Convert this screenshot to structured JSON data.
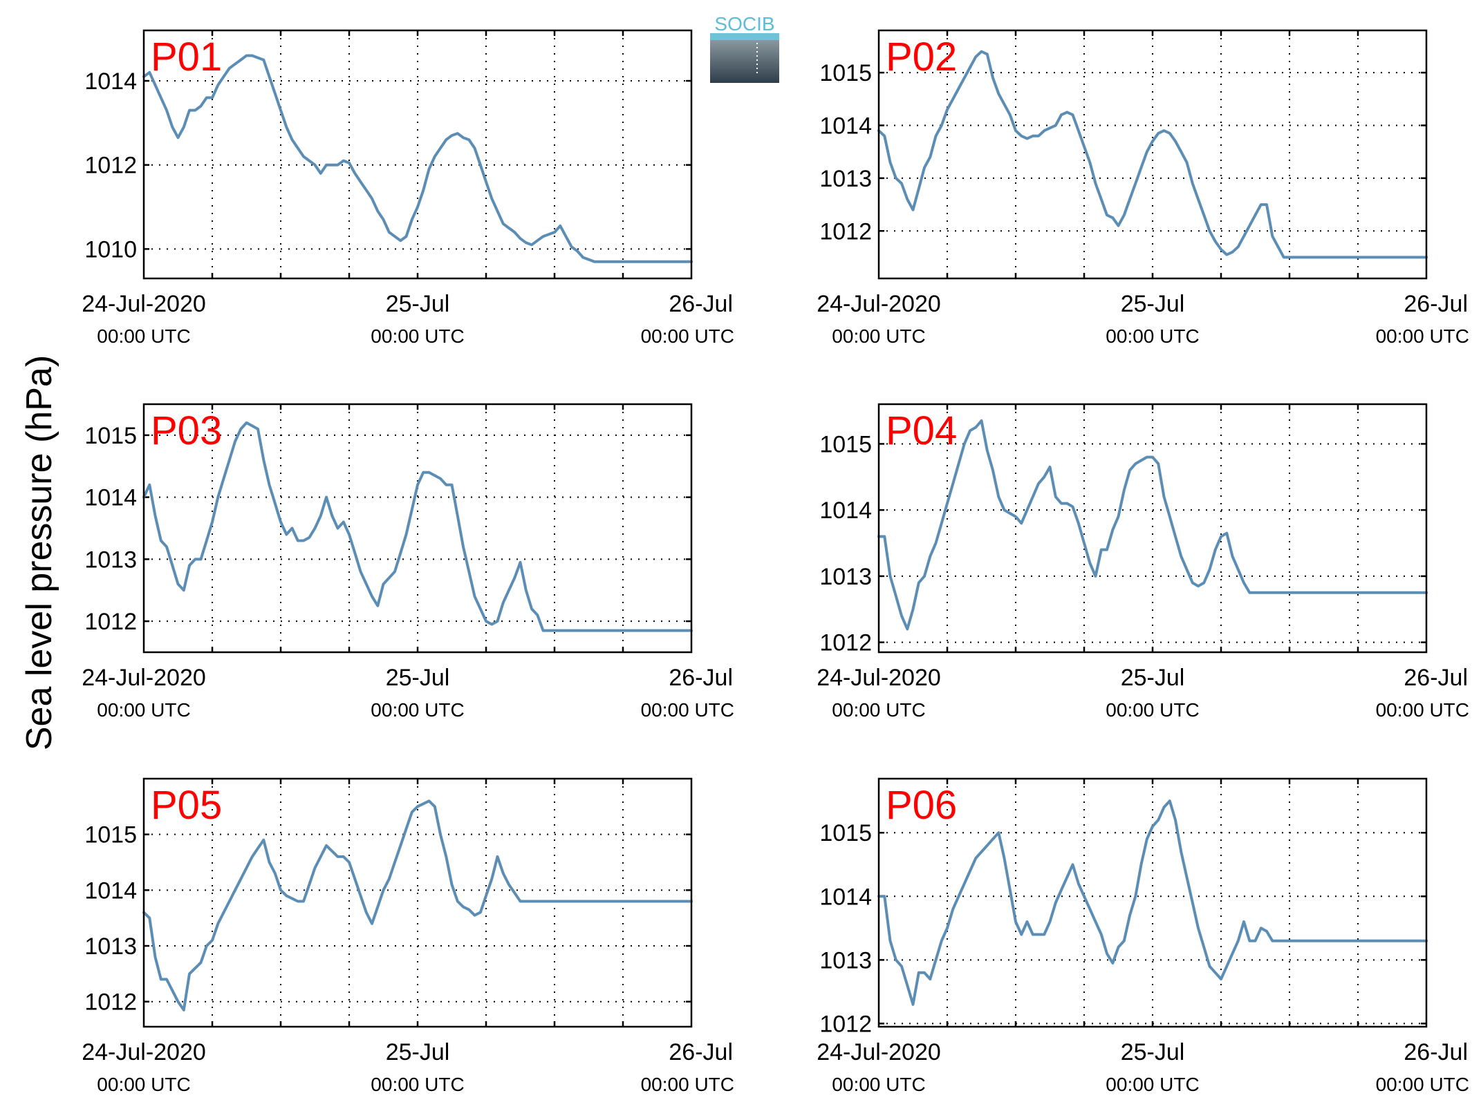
{
  "logo": {
    "text": "SOCIB"
  },
  "colors": {
    "series": "#5b8db5",
    "panel_label": "#ff0000",
    "axes": "#000000",
    "logo_text": "#5bbdd6"
  },
  "y_axis_label": "Sea level pressure (hPa)",
  "x_axis": {
    "ticks": [
      {
        "line1": "24-Jul-2020",
        "line2": "00:00 UTC"
      },
      {
        "line1": "25-Jul",
        "line2": "00:00 UTC"
      },
      {
        "line1": "26-Jul",
        "line2": "00:00 UTC"
      }
    ],
    "unit": "hours since 24-Jul-2020 00:00 UTC"
  },
  "chart_data": [
    {
      "type": "line",
      "label": "P01",
      "xlim": [
        0,
        48
      ],
      "ylim": [
        1009.3,
        1015.2
      ],
      "yticks": [
        1010,
        1012,
        1014
      ],
      "grid": true,
      "x": [
        0,
        0.5,
        1,
        1.5,
        2,
        2.5,
        3,
        3.5,
        4,
        4.5,
        5,
        5.5,
        6,
        6.5,
        7,
        7.5,
        8,
        8.5,
        9,
        9.5,
        10,
        10.5,
        11,
        11.5,
        12,
        12.5,
        13,
        13.5,
        14,
        14.5,
        15,
        15.5,
        16,
        16.5,
        17,
        17.5,
        18,
        18.5,
        19,
        19.5,
        20,
        20.5,
        21,
        21.5,
        22,
        22.5,
        23,
        23.5,
        24,
        24.5,
        25,
        25.5,
        26,
        26.5,
        27,
        27.5,
        28,
        28.5,
        29,
        29.5,
        30,
        30.5,
        31,
        31.5,
        32,
        32.5,
        33,
        33.5,
        34,
        34.5,
        35,
        35.5,
        36,
        36.5,
        37,
        37.5,
        38,
        38.5,
        39,
        39.5,
        40,
        40.5,
        41,
        41.5,
        42,
        42.5,
        43,
        43.5,
        44,
        44.5,
        45,
        45.5,
        46,
        46.5,
        47,
        47.5,
        48
      ],
      "values": [
        1014.1,
        1014.2,
        1013.9,
        1013.6,
        1013.3,
        1012.9,
        1012.65,
        1012.9,
        1013.3,
        1013.3,
        1013.4,
        1013.6,
        1013.6,
        1013.9,
        1014.1,
        1014.3,
        1014.4,
        1014.5,
        1014.6,
        1014.6,
        1014.55,
        1014.5,
        1014.1,
        1013.7,
        1013.3,
        1012.9,
        1012.6,
        1012.4,
        1012.2,
        1012.1,
        1012.0,
        1011.8,
        1012.0,
        1012.0,
        1012.0,
        1012.1,
        1012.05,
        1011.8,
        1011.6,
        1011.4,
        1011.2,
        1010.9,
        1010.7,
        1010.4,
        1010.3,
        1010.2,
        1010.3,
        1010.7,
        1011.0,
        1011.4,
        1011.9,
        1012.2,
        1012.4,
        1012.6,
        1012.7,
        1012.75,
        1012.65,
        1012.6,
        1012.4,
        1012.0,
        1011.6,
        1011.2,
        1010.9,
        1010.6,
        1010.5,
        1010.4,
        1010.25,
        1010.15,
        1010.1,
        1010.2,
        1010.3,
        1010.35,
        1010.4,
        1010.55,
        1010.3,
        1010.05,
        1009.95,
        1009.8,
        1009.75,
        1009.7,
        1009.7,
        1009.7,
        1009.7,
        1009.7,
        1009.7,
        1009.7,
        1009.7,
        1009.7,
        1009.7,
        1009.7,
        1009.7,
        1009.7,
        1009.7,
        1009.7,
        1009.7,
        1009.7,
        1009.7
      ]
    },
    {
      "type": "line",
      "label": "P02",
      "xlim": [
        0,
        48
      ],
      "ylim": [
        1011.1,
        1015.8
      ],
      "yticks": [
        1012,
        1013,
        1014,
        1015
      ],
      "grid": true,
      "x": [
        0,
        0.5,
        1,
        1.5,
        2,
        2.5,
        3,
        3.5,
        4,
        4.5,
        5,
        5.5,
        6,
        6.5,
        7,
        7.5,
        8,
        8.5,
        9,
        9.5,
        10,
        10.5,
        11,
        11.5,
        12,
        12.5,
        13,
        13.5,
        14,
        14.5,
        15,
        15.5,
        16,
        16.5,
        17,
        17.5,
        18,
        18.5,
        19,
        19.5,
        20,
        20.5,
        21,
        21.5,
        22,
        22.5,
        23,
        23.5,
        24,
        24.5,
        25,
        25.5,
        26,
        26.5,
        27,
        27.5,
        28,
        28.5,
        29,
        29.5,
        30,
        30.5,
        31,
        31.5,
        32,
        32.5,
        33,
        33.5,
        34,
        34.5,
        35,
        35.5,
        36,
        36.5,
        37,
        37.5,
        38,
        38.5,
        39,
        39.5,
        40,
        40.5,
        41,
        41.5,
        42,
        42.5,
        43,
        43.5,
        44,
        44.5,
        45,
        45.5,
        46,
        46.5,
        47,
        47.5,
        48
      ],
      "values": [
        1013.9,
        1013.8,
        1013.3,
        1013.0,
        1012.9,
        1012.6,
        1012.4,
        1012.8,
        1013.2,
        1013.4,
        1013.8,
        1014.0,
        1014.3,
        1014.5,
        1014.7,
        1014.9,
        1015.1,
        1015.3,
        1015.4,
        1015.35,
        1014.9,
        1014.6,
        1014.4,
        1014.2,
        1013.9,
        1013.8,
        1013.75,
        1013.8,
        1013.8,
        1013.9,
        1013.95,
        1014.0,
        1014.2,
        1014.25,
        1014.2,
        1013.9,
        1013.6,
        1013.3,
        1012.9,
        1012.6,
        1012.3,
        1012.25,
        1012.1,
        1012.3,
        1012.6,
        1012.9,
        1013.2,
        1013.5,
        1013.7,
        1013.85,
        1013.9,
        1013.85,
        1013.7,
        1013.5,
        1013.3,
        1012.9,
        1012.6,
        1012.3,
        1012.0,
        1011.8,
        1011.65,
        1011.55,
        1011.6,
        1011.7,
        1011.9,
        1012.1,
        1012.3,
        1012.5,
        1012.5,
        1011.9,
        1011.7,
        1011.5,
        1011.5,
        1011.5,
        1011.5,
        1011.5,
        1011.5,
        1011.5,
        1011.5,
        1011.5,
        1011.5,
        1011.5,
        1011.5,
        1011.5,
        1011.5,
        1011.5,
        1011.5,
        1011.5,
        1011.5,
        1011.5,
        1011.5,
        1011.5,
        1011.5,
        1011.5,
        1011.5,
        1011.5,
        1011.5
      ]
    },
    {
      "type": "line",
      "label": "P03",
      "xlim": [
        0,
        48
      ],
      "ylim": [
        1011.5,
        1015.5
      ],
      "yticks": [
        1012,
        1013,
        1014,
        1015
      ],
      "grid": true,
      "x": [
        0,
        0.5,
        1,
        1.5,
        2,
        2.5,
        3,
        3.5,
        4,
        4.5,
        5,
        5.5,
        6,
        6.5,
        7,
        7.5,
        8,
        8.5,
        9,
        9.5,
        10,
        10.5,
        11,
        11.5,
        12,
        12.5,
        13,
        13.5,
        14,
        14.5,
        15,
        15.5,
        16,
        16.5,
        17,
        17.5,
        18,
        18.5,
        19,
        19.5,
        20,
        20.5,
        21,
        21.5,
        22,
        22.5,
        23,
        23.5,
        24,
        24.5,
        25,
        25.5,
        26,
        26.5,
        27,
        27.5,
        28,
        28.5,
        29,
        29.5,
        30,
        30.5,
        31,
        31.5,
        32,
        32.5,
        33,
        33.5,
        34,
        34.5,
        35,
        35.5,
        36,
        36.5,
        37,
        37.5,
        38,
        38.5,
        39,
        39.5,
        40,
        40.5,
        41,
        41.5,
        42,
        42.5,
        43,
        43.5,
        44,
        44.5,
        45,
        45.5,
        46,
        46.5,
        47,
        47.5,
        48
      ],
      "values": [
        1014.0,
        1014.2,
        1013.7,
        1013.3,
        1013.2,
        1012.9,
        1012.6,
        1012.5,
        1012.9,
        1013.0,
        1013.0,
        1013.3,
        1013.6,
        1014.0,
        1014.3,
        1014.6,
        1014.9,
        1015.1,
        1015.2,
        1015.15,
        1015.1,
        1014.6,
        1014.2,
        1013.9,
        1013.6,
        1013.4,
        1013.5,
        1013.3,
        1013.3,
        1013.35,
        1013.5,
        1013.7,
        1014.0,
        1013.7,
        1013.5,
        1013.6,
        1013.4,
        1013.1,
        1012.8,
        1012.6,
        1012.4,
        1012.25,
        1012.6,
        1012.7,
        1012.8,
        1013.1,
        1013.4,
        1013.8,
        1014.2,
        1014.4,
        1014.4,
        1014.35,
        1014.3,
        1014.2,
        1014.2,
        1013.7,
        1013.2,
        1012.8,
        1012.4,
        1012.2,
        1012.0,
        1011.95,
        1012.0,
        1012.3,
        1012.5,
        1012.7,
        1012.95,
        1012.5,
        1012.2,
        1012.1,
        1011.85,
        1011.85,
        1011.85,
        1011.85,
        1011.85,
        1011.85,
        1011.85,
        1011.85,
        1011.85,
        1011.85,
        1011.85,
        1011.85,
        1011.85,
        1011.85,
        1011.85,
        1011.85,
        1011.85,
        1011.85,
        1011.85,
        1011.85,
        1011.85,
        1011.85,
        1011.85,
        1011.85,
        1011.85,
        1011.85,
        1011.85
      ]
    },
    {
      "type": "line",
      "label": "P04",
      "xlim": [
        0,
        48
      ],
      "ylim": [
        1011.85,
        1015.6
      ],
      "yticks": [
        1012,
        1013,
        1014,
        1015
      ],
      "grid": true,
      "x": [
        0,
        0.5,
        1,
        1.5,
        2,
        2.5,
        3,
        3.5,
        4,
        4.5,
        5,
        5.5,
        6,
        6.5,
        7,
        7.5,
        8,
        8.5,
        9,
        9.5,
        10,
        10.5,
        11,
        11.5,
        12,
        12.5,
        13,
        13.5,
        14,
        14.5,
        15,
        15.5,
        16,
        16.5,
        17,
        17.5,
        18,
        18.5,
        19,
        19.5,
        20,
        20.5,
        21,
        21.5,
        22,
        22.5,
        23,
        23.5,
        24,
        24.5,
        25,
        25.5,
        26,
        26.5,
        27,
        27.5,
        28,
        28.5,
        29,
        29.5,
        30,
        30.5,
        31,
        31.5,
        32,
        32.5,
        33,
        33.5,
        34,
        34.5,
        35,
        35.5,
        36,
        36.5,
        37,
        37.5,
        38,
        38.5,
        39,
        39.5,
        40,
        40.5,
        41,
        41.5,
        42,
        42.5,
        43,
        43.5,
        44,
        44.5,
        45,
        45.5,
        46,
        46.5,
        47,
        47.5,
        48
      ],
      "values": [
        1013.6,
        1013.6,
        1013.0,
        1012.7,
        1012.4,
        1012.2,
        1012.5,
        1012.9,
        1013.0,
        1013.3,
        1013.5,
        1013.8,
        1014.1,
        1014.4,
        1014.7,
        1015.0,
        1015.2,
        1015.25,
        1015.35,
        1014.9,
        1014.6,
        1014.2,
        1014.0,
        1013.95,
        1013.9,
        1013.8,
        1014.0,
        1014.2,
        1014.4,
        1014.5,
        1014.65,
        1014.2,
        1014.1,
        1014.1,
        1014.05,
        1013.8,
        1013.5,
        1013.2,
        1013.0,
        1013.4,
        1013.4,
        1013.7,
        1013.9,
        1014.3,
        1014.6,
        1014.7,
        1014.75,
        1014.8,
        1014.8,
        1014.7,
        1014.2,
        1013.9,
        1013.6,
        1013.3,
        1013.1,
        1012.9,
        1012.85,
        1012.9,
        1013.1,
        1013.4,
        1013.6,
        1013.65,
        1013.3,
        1013.1,
        1012.9,
        1012.75,
        1012.75,
        1012.75,
        1012.75,
        1012.75,
        1012.75,
        1012.75,
        1012.75,
        1012.75,
        1012.75,
        1012.75,
        1012.75,
        1012.75,
        1012.75,
        1012.75,
        1012.75,
        1012.75,
        1012.75,
        1012.75,
        1012.75,
        1012.75,
        1012.75,
        1012.75,
        1012.75,
        1012.75,
        1012.75,
        1012.75,
        1012.75,
        1012.75,
        1012.75,
        1012.75,
        1012.75
      ]
    },
    {
      "type": "line",
      "label": "P05",
      "xlim": [
        0,
        48
      ],
      "ylim": [
        1011.55,
        1016.0
      ],
      "yticks": [
        1012,
        1013,
        1014,
        1015
      ],
      "grid": true,
      "x": [
        0,
        0.5,
        1,
        1.5,
        2,
        2.5,
        3,
        3.5,
        4,
        4.5,
        5,
        5.5,
        6,
        6.5,
        7,
        7.5,
        8,
        8.5,
        9,
        9.5,
        10,
        10.5,
        11,
        11.5,
        12,
        12.5,
        13,
        13.5,
        14,
        14.5,
        15,
        15.5,
        16,
        16.5,
        17,
        17.5,
        18,
        18.5,
        19,
        19.5,
        20,
        20.5,
        21,
        21.5,
        22,
        22.5,
        23,
        23.5,
        24,
        24.5,
        25,
        25.5,
        26,
        26.5,
        27,
        27.5,
        28,
        28.5,
        29,
        29.5,
        30,
        30.5,
        31,
        31.5,
        32,
        32.5,
        33,
        33.5,
        34,
        34.5,
        35,
        35.5,
        36,
        36.5,
        37,
        37.5,
        38,
        38.5,
        39,
        39.5,
        40,
        40.5,
        41,
        41.5,
        42,
        42.5,
        43,
        43.5,
        44,
        44.5,
        45,
        45.5,
        46,
        46.5,
        47,
        47.5,
        48
      ],
      "values": [
        1013.6,
        1013.5,
        1012.8,
        1012.4,
        1012.4,
        1012.2,
        1012.0,
        1011.85,
        1012.5,
        1012.6,
        1012.7,
        1013.0,
        1013.1,
        1013.4,
        1013.6,
        1013.8,
        1014.0,
        1014.2,
        1014.4,
        1014.6,
        1014.75,
        1014.9,
        1014.5,
        1014.3,
        1014.0,
        1013.9,
        1013.85,
        1013.8,
        1013.8,
        1014.1,
        1014.4,
        1014.6,
        1014.8,
        1014.7,
        1014.6,
        1014.6,
        1014.5,
        1014.2,
        1013.9,
        1013.6,
        1013.4,
        1013.7,
        1014.0,
        1014.2,
        1014.5,
        1014.8,
        1015.1,
        1015.4,
        1015.5,
        1015.55,
        1015.6,
        1015.5,
        1015.0,
        1014.6,
        1014.1,
        1013.8,
        1013.7,
        1013.65,
        1013.55,
        1013.6,
        1013.9,
        1014.2,
        1014.6,
        1014.3,
        1014.1,
        1013.95,
        1013.8,
        1013.8,
        1013.8,
        1013.8,
        1013.8,
        1013.8,
        1013.8,
        1013.8,
        1013.8,
        1013.8,
        1013.8,
        1013.8,
        1013.8,
        1013.8,
        1013.8,
        1013.8,
        1013.8,
        1013.8,
        1013.8,
        1013.8,
        1013.8,
        1013.8,
        1013.8,
        1013.8,
        1013.8,
        1013.8,
        1013.8,
        1013.8,
        1013.8,
        1013.8,
        1013.8
      ]
    },
    {
      "type": "line",
      "label": "P06",
      "xlim": [
        0,
        48
      ],
      "ylim": [
        1011.95,
        1015.85
      ],
      "yticks": [
        1012,
        1013,
        1014,
        1015
      ],
      "grid": true,
      "x": [
        0,
        0.5,
        1,
        1.5,
        2,
        2.5,
        3,
        3.5,
        4,
        4.5,
        5,
        5.5,
        6,
        6.5,
        7,
        7.5,
        8,
        8.5,
        9,
        9.5,
        10,
        10.5,
        11,
        11.5,
        12,
        12.5,
        13,
        13.5,
        14,
        14.5,
        15,
        15.5,
        16,
        16.5,
        17,
        17.5,
        18,
        18.5,
        19,
        19.5,
        20,
        20.5,
        21,
        21.5,
        22,
        22.5,
        23,
        23.5,
        24,
        24.5,
        25,
        25.5,
        26,
        26.5,
        27,
        27.5,
        28,
        28.5,
        29,
        29.5,
        30,
        30.5,
        31,
        31.5,
        32,
        32.5,
        33,
        33.5,
        34,
        34.5,
        35,
        35.5,
        36,
        36.5,
        37,
        37.5,
        38,
        38.5,
        39,
        39.5,
        40,
        40.5,
        41,
        41.5,
        42,
        42.5,
        43,
        43.5,
        44,
        44.5,
        45,
        45.5,
        46,
        46.5,
        47,
        47.5,
        48
      ],
      "values": [
        1014.0,
        1014.0,
        1013.3,
        1013.0,
        1012.9,
        1012.6,
        1012.3,
        1012.8,
        1012.8,
        1012.7,
        1013.0,
        1013.3,
        1013.5,
        1013.8,
        1014.0,
        1014.2,
        1014.4,
        1014.6,
        1014.7,
        1014.8,
        1014.9,
        1015.0,
        1014.6,
        1014.1,
        1013.6,
        1013.4,
        1013.6,
        1013.4,
        1013.4,
        1013.4,
        1013.6,
        1013.9,
        1014.1,
        1014.3,
        1014.5,
        1014.2,
        1014.0,
        1013.8,
        1013.6,
        1013.4,
        1013.1,
        1012.95,
        1013.2,
        1013.3,
        1013.7,
        1014.0,
        1014.5,
        1014.9,
        1015.1,
        1015.2,
        1015.4,
        1015.5,
        1015.2,
        1014.7,
        1014.3,
        1013.9,
        1013.5,
        1013.2,
        1012.9,
        1012.8,
        1012.7,
        1012.9,
        1013.1,
        1013.3,
        1013.6,
        1013.3,
        1013.3,
        1013.5,
        1013.45,
        1013.3,
        1013.3,
        1013.3,
        1013.3,
        1013.3,
        1013.3,
        1013.3,
        1013.3,
        1013.3,
        1013.3,
        1013.3,
        1013.3,
        1013.3,
        1013.3,
        1013.3,
        1013.3,
        1013.3,
        1013.3,
        1013.3,
        1013.3,
        1013.3,
        1013.3,
        1013.3,
        1013.3,
        1013.3,
        1013.3,
        1013.3,
        1013.3
      ]
    }
  ]
}
